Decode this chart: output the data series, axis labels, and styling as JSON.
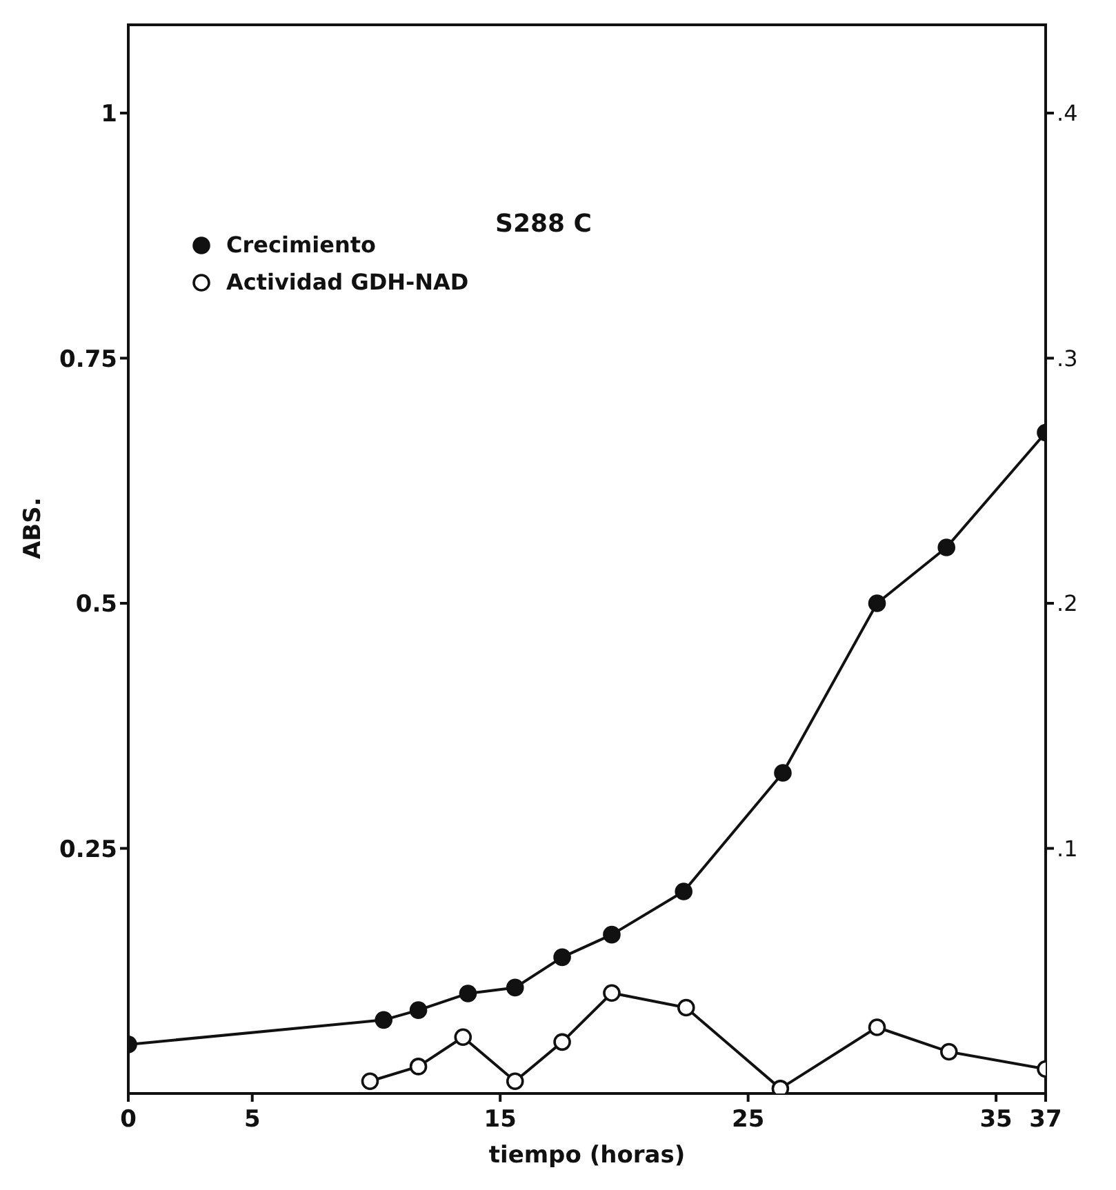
{
  "chart_data": {
    "type": "line",
    "xlabel": "tiempo (horas)",
    "ylabel": "ABS.",
    "annotations": [
      "S288 C"
    ],
    "xlim": [
      0,
      37
    ],
    "xticks": [
      0,
      5,
      15,
      25,
      35,
      37
    ],
    "ylim": [
      0,
      1.09
    ],
    "yticks": [
      0.25,
      0.5,
      0.75,
      1.0
    ],
    "y2lim": [
      0,
      0.436
    ],
    "y2ticks": [
      {
        "value": 0.1,
        "label": ".1"
      },
      {
        "value": 0.2,
        "label": ".2"
      },
      {
        "value": 0.3,
        "label": ".3"
      },
      {
        "value": 0.4,
        "label": ".4"
      }
    ],
    "grid": false,
    "legend": "top left",
    "marker": "circle",
    "line_style": "solid",
    "series": [
      {
        "name": "Crecimiento",
        "color": "#111111",
        "x": [
          0,
          10.3,
          11.7,
          13.7,
          15.6,
          17.5,
          19.5,
          22.4,
          26.4,
          30.2,
          33.0,
          37.0
        ],
        "values": [
          0.05,
          0.075,
          0.085,
          0.102,
          0.108,
          0.139,
          0.162,
          0.206,
          0.327,
          0.5,
          0.557,
          0.674
        ]
      },
      {
        "name": "Actividad GDH-NAD",
        "color": "#111111",
        "axis": "y2",
        "x": [
          9.75,
          11.7,
          13.5,
          15.6,
          17.5,
          19.5,
          22.5,
          26.3,
          30.2,
          33.1,
          37.0
        ],
        "values": [
          0.005,
          0.011,
          0.023,
          0.005,
          0.021,
          0.041,
          0.035,
          0.002,
          0.027,
          0.017,
          0.01
        ]
      }
    ]
  }
}
